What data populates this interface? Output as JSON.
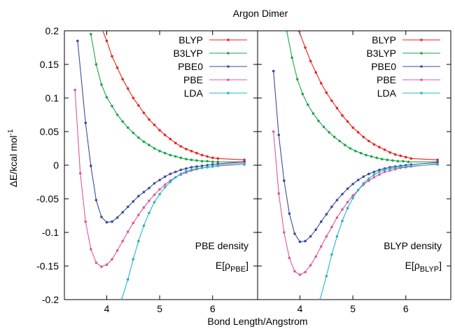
{
  "title": "Argon Dimer",
  "xlabel": "Bond Length/Angstrom",
  "ylabel_main": "ΔE/kcal mol",
  "ylabel_sup": "-1",
  "colors": {
    "BLYP": "#e8241c",
    "B3LYP": "#1aa64a",
    "PBE0": "#3a4aa0",
    "PBE": "#e0559f",
    "LDA": "#22b6c8"
  },
  "chart_data": [
    {
      "type": "line",
      "panel": "left",
      "annotation_line1": "PBE density",
      "annotation_line2_prefix": "E[ρ",
      "annotation_line2_sub": "PBE",
      "annotation_line2_suffix": "]",
      "xlim": [
        3.2,
        6.85
      ],
      "ylim": [
        -0.2,
        0.2
      ],
      "xticks": [
        "4",
        "5",
        "6"
      ],
      "yticks": [
        "0.2",
        "0.15",
        "0.1",
        "0.05",
        "0",
        "-0.05",
        "-0.1",
        "-0.15",
        "-0.2"
      ],
      "legend_position": "top-right",
      "series": [
        {
          "name": "BLYP",
          "x": [
            3.9,
            4.0,
            4.1,
            4.2,
            4.3,
            4.4,
            4.5,
            4.6,
            4.7,
            4.8,
            4.9,
            5.0,
            5.1,
            5.2,
            5.3,
            5.4,
            5.5,
            5.6,
            5.7,
            5.8,
            5.9,
            6.0,
            6.1,
            6.6
          ],
          "y": [
            0.205,
            0.185,
            0.162,
            0.145,
            0.128,
            0.114,
            0.1,
            0.089,
            0.078,
            0.068,
            0.06,
            0.052,
            0.045,
            0.039,
            0.033,
            0.028,
            0.024,
            0.021,
            0.018,
            0.015,
            0.013,
            0.011,
            0.01,
            0.008
          ]
        },
        {
          "name": "B3LYP",
          "x": [
            3.7,
            3.8,
            3.9,
            4.0,
            4.1,
            4.2,
            4.3,
            4.4,
            4.5,
            4.6,
            4.7,
            4.8,
            4.9,
            5.0,
            5.1,
            5.2,
            5.3,
            5.4,
            5.5,
            5.6,
            5.7,
            5.8,
            5.9,
            6.0,
            6.1,
            6.6
          ],
          "y": [
            0.195,
            0.15,
            0.12,
            0.101,
            0.088,
            0.075,
            0.065,
            0.056,
            0.048,
            0.041,
            0.035,
            0.03,
            0.025,
            0.021,
            0.018,
            0.015,
            0.013,
            0.011,
            0.009,
            0.008,
            0.007,
            0.006,
            0.006,
            0.005,
            0.005,
            0.005
          ]
        },
        {
          "name": "PBE0",
          "x": [
            3.45,
            3.6,
            3.7,
            3.8,
            3.9,
            4.0,
            4.1,
            4.2,
            4.3,
            4.4,
            4.5,
            4.6,
            4.7,
            4.8,
            4.9,
            5.0,
            5.1,
            5.2,
            5.3,
            5.4,
            5.5,
            5.6,
            5.7,
            5.8,
            5.9,
            6.0,
            6.1,
            6.6
          ],
          "y": [
            0.185,
            0.063,
            -0.001,
            -0.052,
            -0.077,
            -0.085,
            -0.084,
            -0.078,
            -0.07,
            -0.062,
            -0.054,
            -0.046,
            -0.04,
            -0.034,
            -0.027,
            -0.022,
            -0.017,
            -0.013,
            -0.01,
            -0.007,
            -0.005,
            -0.003,
            -0.002,
            -0.001,
            0.0,
            0.001,
            0.002,
            0.005
          ]
        },
        {
          "name": "PBE",
          "x": [
            3.4,
            3.5,
            3.6,
            3.7,
            3.8,
            3.9,
            4.0,
            4.1,
            4.2,
            4.3,
            4.4,
            4.5,
            4.6,
            4.7,
            4.8,
            4.9,
            5.0,
            5.1,
            5.2,
            5.3,
            5.4,
            5.5,
            5.6,
            5.7,
            5.8,
            5.9,
            6.0,
            6.1,
            6.6
          ],
          "y": [
            0.112,
            -0.012,
            -0.084,
            -0.125,
            -0.145,
            -0.151,
            -0.148,
            -0.14,
            -0.127,
            -0.113,
            -0.099,
            -0.086,
            -0.074,
            -0.063,
            -0.053,
            -0.044,
            -0.036,
            -0.029,
            -0.023,
            -0.018,
            -0.014,
            -0.011,
            -0.008,
            -0.006,
            -0.004,
            -0.003,
            -0.002,
            0.0,
            0.003
          ]
        },
        {
          "name": "LDA",
          "x": [
            4.28,
            4.4,
            4.5,
            4.6,
            4.7,
            4.8,
            4.9,
            5.0,
            5.1,
            5.2,
            5.3,
            5.4,
            5.5,
            5.6,
            5.7,
            5.8,
            5.9,
            6.0,
            6.1,
            6.6
          ],
          "y": [
            -0.2,
            -0.17,
            -0.14,
            -0.113,
            -0.09,
            -0.071,
            -0.055,
            -0.043,
            -0.033,
            -0.025,
            -0.018,
            -0.013,
            -0.009,
            -0.007,
            -0.005,
            -0.004,
            -0.003,
            -0.002,
            -0.001,
            0.001
          ]
        }
      ]
    },
    {
      "type": "line",
      "panel": "right",
      "annotation_line1": "BLYP density",
      "annotation_line2_prefix": "E[ρ",
      "annotation_line2_sub": "BLYP",
      "annotation_line2_suffix": "]",
      "xlim": [
        3.2,
        6.85
      ],
      "ylim": [
        -0.2,
        0.2
      ],
      "xticks": [
        "4",
        "5",
        "6"
      ],
      "legend_position": "top-right",
      "series": [
        {
          "name": "BLYP",
          "x": [
            3.98,
            4.1,
            4.2,
            4.3,
            4.4,
            4.5,
            4.6,
            4.7,
            4.8,
            4.9,
            5.0,
            5.1,
            5.2,
            5.3,
            5.4,
            5.5,
            5.6,
            5.7,
            5.8,
            5.9,
            6.0,
            6.1,
            6.6
          ],
          "y": [
            0.2,
            0.175,
            0.155,
            0.138,
            0.122,
            0.108,
            0.096,
            0.085,
            0.074,
            0.065,
            0.056,
            0.049,
            0.042,
            0.036,
            0.031,
            0.027,
            0.023,
            0.019,
            0.016,
            0.014,
            0.012,
            0.01,
            0.008
          ]
        },
        {
          "name": "B3LYP",
          "x": [
            3.75,
            3.85,
            3.95,
            4.05,
            4.15,
            4.25,
            4.35,
            4.45,
            4.55,
            4.65,
            4.75,
            4.85,
            4.95,
            5.05,
            5.15,
            5.25,
            5.35,
            5.45,
            5.55,
            5.65,
            5.75,
            5.85,
            5.95,
            6.05,
            6.6
          ],
          "y": [
            0.2,
            0.16,
            0.128,
            0.106,
            0.09,
            0.077,
            0.066,
            0.057,
            0.049,
            0.042,
            0.036,
            0.03,
            0.025,
            0.021,
            0.018,
            0.015,
            0.013,
            0.011,
            0.009,
            0.008,
            0.007,
            0.006,
            0.006,
            0.005,
            0.005
          ]
        },
        {
          "name": "PBE0",
          "x": [
            3.5,
            3.6,
            3.7,
            3.8,
            3.9,
            4.0,
            4.1,
            4.2,
            4.3,
            4.4,
            4.5,
            4.6,
            4.7,
            4.8,
            4.9,
            5.0,
            5.1,
            5.2,
            5.3,
            5.4,
            5.5,
            5.6,
            5.7,
            5.8,
            5.9,
            6.0,
            6.1,
            6.6
          ],
          "y": [
            0.14,
            0.045,
            -0.023,
            -0.072,
            -0.102,
            -0.114,
            -0.113,
            -0.106,
            -0.096,
            -0.084,
            -0.073,
            -0.062,
            -0.052,
            -0.043,
            -0.035,
            -0.028,
            -0.022,
            -0.017,
            -0.013,
            -0.01,
            -0.007,
            -0.005,
            -0.003,
            -0.002,
            -0.001,
            0.0,
            0.001,
            0.004
          ]
        },
        {
          "name": "PBE",
          "x": [
            3.5,
            3.6,
            3.7,
            3.8,
            3.9,
            4.0,
            4.1,
            4.2,
            4.3,
            4.4,
            4.5,
            4.6,
            4.7,
            4.8,
            4.9,
            5.0,
            5.1,
            5.2,
            5.3,
            5.4,
            5.5,
            5.6,
            5.7,
            5.8,
            5.9,
            6.0,
            6.1,
            6.6
          ],
          "y": [
            0.05,
            -0.042,
            -0.1,
            -0.138,
            -0.158,
            -0.163,
            -0.159,
            -0.149,
            -0.136,
            -0.121,
            -0.106,
            -0.092,
            -0.078,
            -0.066,
            -0.055,
            -0.045,
            -0.037,
            -0.029,
            -0.023,
            -0.018,
            -0.014,
            -0.01,
            -0.008,
            -0.006,
            -0.004,
            -0.003,
            -0.002,
            0.002
          ]
        },
        {
          "name": "LDA",
          "x": [
            4.38,
            4.5,
            4.6,
            4.7,
            4.8,
            4.9,
            5.0,
            5.1,
            5.2,
            5.3,
            5.4,
            5.5,
            5.6,
            5.7,
            5.8,
            5.9,
            6.0,
            6.1,
            6.6
          ],
          "y": [
            -0.2,
            -0.165,
            -0.133,
            -0.106,
            -0.083,
            -0.064,
            -0.049,
            -0.037,
            -0.027,
            -0.02,
            -0.014,
            -0.01,
            -0.007,
            -0.005,
            -0.004,
            -0.003,
            -0.002,
            -0.001,
            0.001
          ]
        }
      ]
    }
  ]
}
